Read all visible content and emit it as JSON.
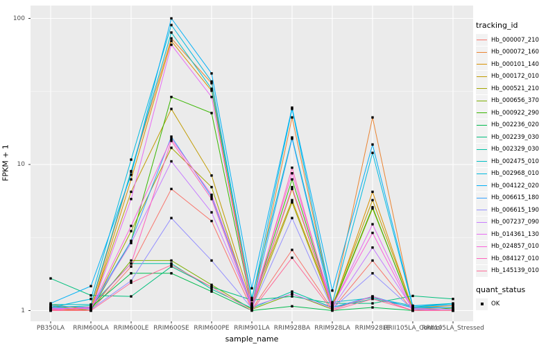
{
  "chart_data": {
    "type": "line",
    "title": "",
    "xlabel": "sample_name",
    "ylabel": "FPKM + 1",
    "yscale": "log10",
    "yticks": [
      1,
      10,
      100
    ],
    "ytick_labels": [
      "1",
      "10",
      "100"
    ],
    "minor_gridlines": [
      3.162,
      31.62
    ],
    "ylim": [
      0.84,
      122
    ],
    "grid": true,
    "panel_bg": "#EBEBEB",
    "grid_color": "#FFFFFF",
    "tick_label_color": "#4D4D4D",
    "point_shape": "filled-square",
    "point_color": "#000000",
    "legend_position": "right",
    "categories": [
      "PB350LA",
      "RRIM600LA",
      "RRIM600LE",
      "RRIM600SE",
      "RRIM600PE",
      "RRIM901LA",
      "RRIM928BA",
      "RRIM928LA",
      "RRIM928LE",
      "RRII105LA_Control",
      "RRII105LA_Stressed"
    ],
    "legend": {
      "color_title": "tracking_id",
      "shape_title": "quant_status",
      "shape_items": [
        {
          "label": "OK"
        }
      ]
    },
    "series": [
      {
        "name": "Hb_000007_210",
        "color": "#F8766D",
        "values": [
          1.04,
          1.0,
          2.0,
          6.8,
          4.1,
          1.02,
          2.6,
          1.02,
          2.2,
          1.0,
          1.0
        ]
      },
      {
        "name": "Hb_000072_160",
        "color": "#EA8331",
        "values": [
          1.0,
          1.05,
          8.9,
          73.0,
          36.0,
          1.08,
          21.0,
          1.08,
          21.0,
          1.05,
          1.08
        ]
      },
      {
        "name": "Hb_000101_140",
        "color": "#D89000",
        "values": [
          1.02,
          1.0,
          7.9,
          70.0,
          32.0,
          1.05,
          6.8,
          1.05,
          6.5,
          1.02,
          1.0
        ]
      },
      {
        "name": "Hb_000172_010",
        "color": "#C09B00",
        "values": [
          1.1,
          1.02,
          6.5,
          24.0,
          8.4,
          1.12,
          5.7,
          1.08,
          5.7,
          1.04,
          1.02
        ]
      },
      {
        "name": "Hb_000521_210",
        "color": "#A3A500",
        "values": [
          1.08,
          1.0,
          3.5,
          13.0,
          7.0,
          1.05,
          5.5,
          1.04,
          5.0,
          1.02,
          1.0
        ]
      },
      {
        "name": "Hb_000656_370",
        "color": "#7CAE00",
        "values": [
          1.05,
          1.02,
          2.2,
          2.2,
          1.5,
          1.02,
          1.3,
          1.02,
          1.25,
          1.0,
          1.0
        ]
      },
      {
        "name": "Hb_000922_290",
        "color": "#39B600",
        "values": [
          1.0,
          1.0,
          3.0,
          29.0,
          22.5,
          1.06,
          7.9,
          1.06,
          5.1,
          1.0,
          1.04
        ]
      },
      {
        "name": "Hb_002236_020",
        "color": "#00BB4E",
        "values": [
          1.02,
          1.05,
          1.8,
          1.8,
          1.35,
          1.0,
          1.07,
          1.0,
          1.05,
          1.0,
          1.0
        ]
      },
      {
        "name": "Hb_002239_030",
        "color": "#00BF7D",
        "values": [
          1.66,
          1.27,
          1.25,
          2.0,
          1.45,
          1.18,
          1.25,
          1.12,
          1.12,
          1.26,
          1.2
        ]
      },
      {
        "name": "Hb_002329_030",
        "color": "#00C1A3",
        "values": [
          1.05,
          1.08,
          2.1,
          2.1,
          1.4,
          1.04,
          1.35,
          1.05,
          1.2,
          1.06,
          1.05
        ]
      },
      {
        "name": "Hb_002475_010",
        "color": "#00BFC4",
        "values": [
          1.1,
          1.1,
          9.0,
          80.0,
          33.0,
          1.22,
          15.3,
          1.14,
          1.22,
          1.08,
          1.12
        ]
      },
      {
        "name": "Hb_002968_010",
        "color": "#00BAE0",
        "values": [
          1.05,
          1.2,
          10.8,
          90.0,
          37.0,
          1.18,
          24.0,
          1.12,
          12.0,
          1.06,
          1.1
        ]
      },
      {
        "name": "Hb_004122_020",
        "color": "#00B0F6",
        "values": [
          1.12,
          1.47,
          8.5,
          100.0,
          42.0,
          1.42,
          24.5,
          1.37,
          13.7,
          1.08,
          1.1
        ]
      },
      {
        "name": "Hb_006615_180",
        "color": "#35A2FF",
        "values": [
          1.08,
          1.05,
          3.0,
          15.5,
          6.0,
          1.08,
          15.0,
          1.05,
          1.25,
          1.04,
          1.05
        ]
      },
      {
        "name": "Hb_006615_190",
        "color": "#9590FF",
        "values": [
          1.05,
          1.02,
          1.6,
          4.3,
          2.2,
          1.04,
          4.3,
          1.03,
          1.8,
          1.02,
          1.0
        ]
      },
      {
        "name": "Hb_007237_090",
        "color": "#C77CFF",
        "values": [
          1.03,
          1.04,
          2.9,
          10.5,
          4.7,
          1.07,
          1.3,
          1.04,
          2.7,
          1.03,
          1.02
        ]
      },
      {
        "name": "Hb_014361_130",
        "color": "#E76BF3",
        "values": [
          1.0,
          1.0,
          5.8,
          66.0,
          29.0,
          1.05,
          7.0,
          1.06,
          3.9,
          1.02,
          1.0
        ]
      },
      {
        "name": "Hb_024857_010",
        "color": "#FA62DB",
        "values": [
          1.02,
          1.03,
          3.8,
          15.0,
          6.2,
          1.1,
          8.7,
          1.08,
          3.4,
          1.0,
          1.0
        ]
      },
      {
        "name": "Hb_084127_010",
        "color": "#FF62BC",
        "values": [
          1.0,
          1.06,
          2.1,
          14.5,
          5.8,
          1.03,
          9.5,
          1.02,
          1.25,
          1.0,
          1.0
        ]
      },
      {
        "name": "Hb_145139_010",
        "color": "#FF6A98",
        "values": [
          1.0,
          1.0,
          1.55,
          2.05,
          1.45,
          1.0,
          2.3,
          1.0,
          1.2,
          1.0,
          1.0
        ]
      }
    ]
  }
}
